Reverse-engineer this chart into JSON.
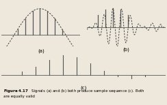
{
  "fig_bg": "#ede8db",
  "line_color": "#555555",
  "dashed_color": "#444444",
  "label_a": "(a)",
  "label_b": "(b)",
  "label_c": "(c)",
  "caption_bold": "Figure 4.17",
  "caption_rest": "   Signals (a) and (b) both produce sample sequence (c). Both\nare equally valid",
  "samp_x_a": [
    -3,
    -2,
    -1,
    0,
    1,
    2,
    3,
    4
  ],
  "samp_x_c": [
    -3,
    -2,
    -1,
    0,
    1,
    2,
    3,
    4,
    5,
    6
  ]
}
